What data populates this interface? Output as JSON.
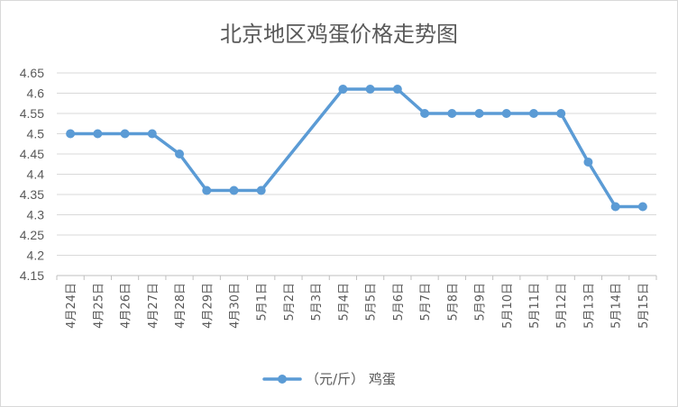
{
  "chart_data": {
    "type": "line",
    "title": "北京地区鸡蛋价格走势图",
    "categories": [
      "4月24日",
      "4月25日",
      "4月26日",
      "4月27日",
      "4月28日",
      "4月29日",
      "4月30日",
      "5月1日",
      "5月2日",
      "5月3日",
      "5月4日",
      "5月5日",
      "5月6日",
      "5月7日",
      "5月8日",
      "5月9日",
      "5月10日",
      "5月11日",
      "5月12日",
      "5月13日",
      "5月14日",
      "5月15日"
    ],
    "series": [
      {
        "name": "（元/斤） 鸡蛋",
        "color": "#5b9bd5",
        "values": [
          4.5,
          4.5,
          4.5,
          4.5,
          4.45,
          4.36,
          4.36,
          4.36,
          null,
          null,
          4.61,
          4.61,
          4.61,
          4.55,
          4.55,
          4.55,
          4.55,
          4.55,
          4.55,
          4.43,
          4.32,
          4.32
        ]
      }
    ],
    "ylim": [
      4.15,
      4.65
    ],
    "yticks": [
      4.15,
      4.2,
      4.25,
      4.3,
      4.35,
      4.4,
      4.45,
      4.5,
      4.55,
      4.6,
      4.65
    ],
    "ytick_labels": [
      "4.15",
      "4.2",
      "4.25",
      "4.3",
      "4.35",
      "4.4",
      "4.45",
      "4.5",
      "4.55",
      "4.6",
      "4.65"
    ],
    "grid": true,
    "legend": "bottom",
    "gaps": "connect"
  }
}
